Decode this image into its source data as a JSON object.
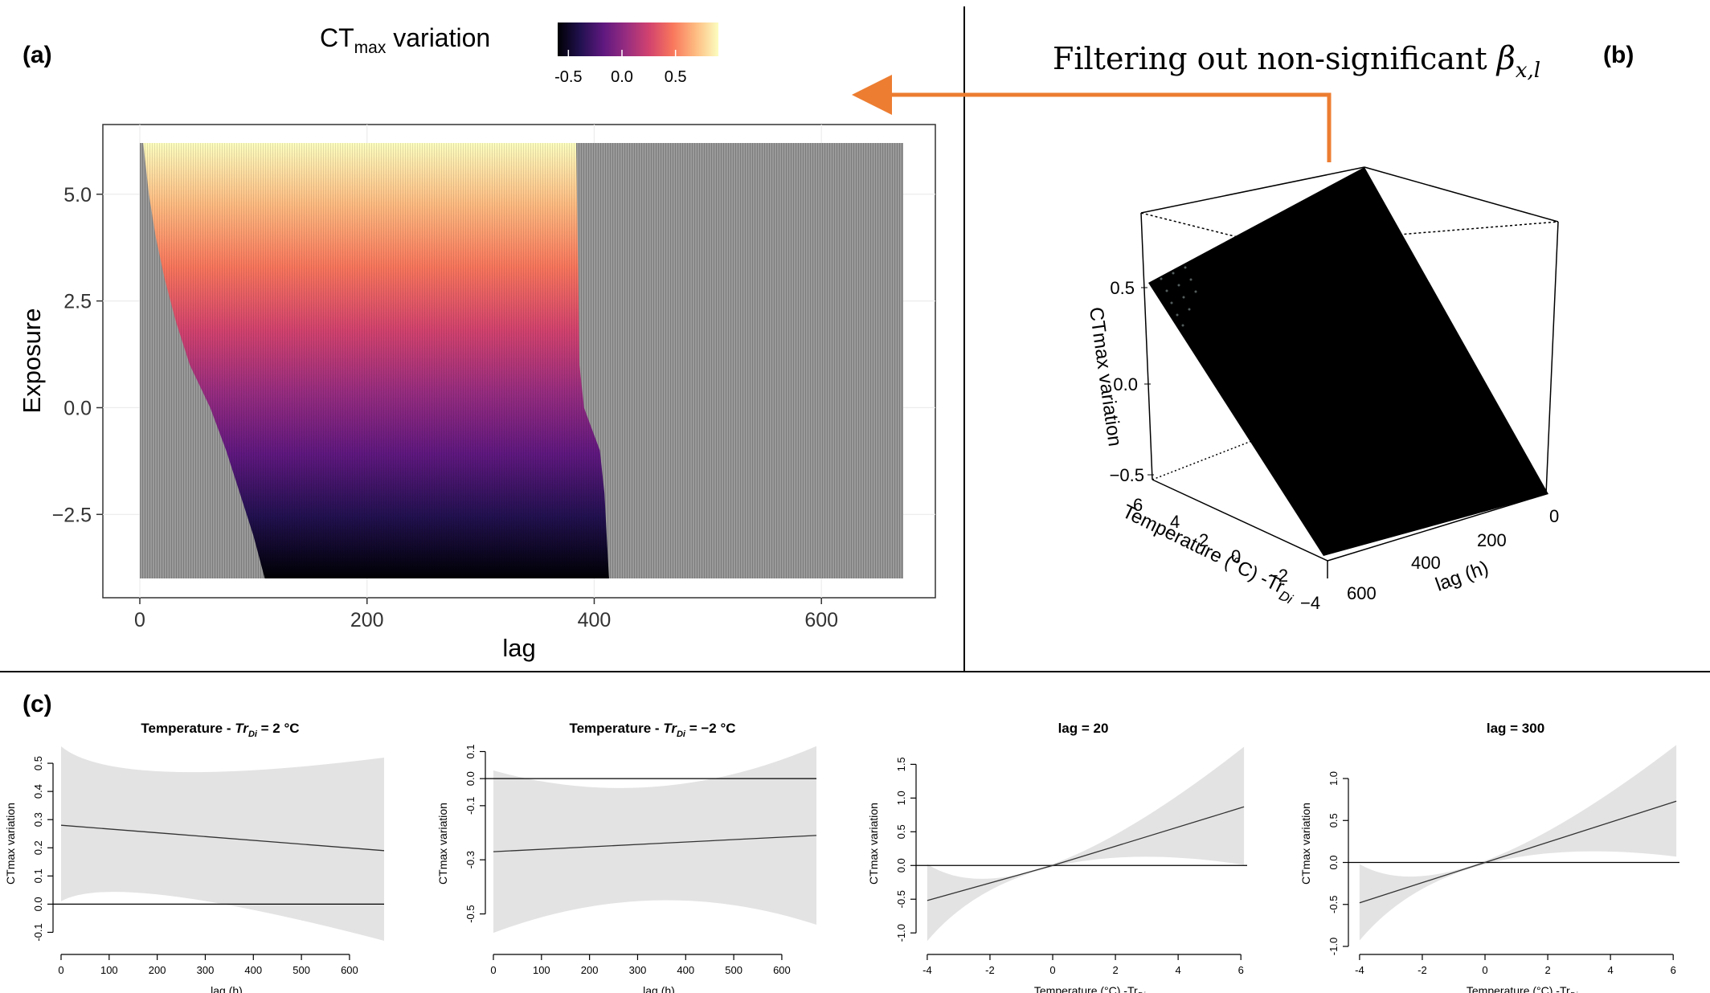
{
  "colors": {
    "na_gray": "#8c8c8c",
    "ci_band": "#e3e3e3",
    "arrow": "#ed7d31",
    "surface": "#000000",
    "magma": [
      "#000004",
      "#221150",
      "#5f187f",
      "#982d80",
      "#d3436e",
      "#f8765c",
      "#febb81",
      "#fcfdbf"
    ]
  },
  "chart_data": [
    {
      "type": "heatmap",
      "panel": "(a)",
      "x": {
        "label": "lag",
        "range": [
          0,
          672
        ],
        "ticks": [
          0,
          200,
          400,
          600
        ],
        "tick_labels": [
          "0",
          "200",
          "400",
          "600"
        ]
      },
      "y": {
        "label": "Exposure",
        "range": [
          -4.0,
          6.2
        ],
        "ticks": [
          -2.5,
          0.0,
          2.5,
          5.0
        ],
        "tick_labels": [
          "−2.5",
          "0.0",
          "2.5",
          "5.0"
        ]
      },
      "legend": {
        "title": "CT",
        "title_sub": "max",
        "title_rest": " variation",
        "range": [
          -0.6,
          0.9
        ],
        "ticks": [
          -0.5,
          0.0,
          0.5
        ],
        "tick_labels": [
          "-0.5",
          "0.0",
          "0.5"
        ],
        "placement": "top"
      },
      "fill_min": -0.62,
      "fill_max": 0.92,
      "significant_lag_min_at_exposure": [
        [
          -4.0,
          110
        ],
        [
          -3.0,
          100
        ],
        [
          -2.0,
          88
        ],
        [
          -1.0,
          76
        ],
        [
          0.0,
          62
        ],
        [
          1.0,
          44
        ],
        [
          2.0,
          32
        ],
        [
          3.0,
          22
        ],
        [
          4.0,
          14
        ],
        [
          5.0,
          8
        ],
        [
          6.2,
          3
        ]
      ],
      "significant_lag_max_at_exposure": [
        [
          -4.0,
          413
        ],
        [
          -3.0,
          411
        ],
        [
          -2.0,
          409
        ],
        [
          -1.0,
          405
        ],
        [
          -0.5,
          398
        ],
        [
          0.0,
          391
        ],
        [
          1.0,
          387
        ],
        [
          3.0,
          386
        ],
        [
          6.2,
          384
        ]
      ],
      "non_significant": "gray"
    },
    {
      "type": "surface3d",
      "panel": "(b)",
      "title_text": "Filtering out non-significant ",
      "title_math": "β",
      "title_math_sub": "x,l",
      "z_label": "CTmax variation",
      "z_ticks": [
        "0.5",
        "0.0",
        "−0.5"
      ],
      "x_label": "Temperature (°C) -Tr",
      "x_label_sub": "Di",
      "x_ticks": [
        "6",
        "4",
        "2",
        "0",
        "−2",
        "−4"
      ],
      "lag_label": "lag (h)",
      "lag_ticks": [
        "0",
        "200",
        "400",
        "600"
      ]
    },
    {
      "type": "line",
      "panel": "(c)",
      "title": "Temperature - ",
      "title_math": "Tr",
      "title_math_sub": "Di",
      "title_rest": " = 2 °C",
      "xlabel": "lag (h)",
      "ylabel": "CTmax variation",
      "xlim": [
        0,
        672
      ],
      "ylim": [
        -0.15,
        0.58
      ],
      "xticks": [
        0,
        100,
        200,
        300,
        400,
        500,
        600
      ],
      "xtick_labels": [
        "0",
        "100",
        "200",
        "300",
        "400",
        "500",
        "600"
      ],
      "yticks": [
        -0.1,
        0.0,
        0.1,
        0.2,
        0.3,
        0.4,
        0.5
      ],
      "ytick_labels": [
        "-0.1",
        "0.0",
        "0.1",
        "0.2",
        "0.3",
        "0.4",
        "0.5"
      ],
      "x": [
        0,
        224,
        672
      ],
      "values": [
        0.28,
        0.25,
        0.19
      ],
      "lower": [
        0.01,
        0.03,
        -0.13
      ],
      "upper": [
        0.56,
        0.47,
        0.52
      ],
      "reference_line": 0
    },
    {
      "type": "line",
      "title": "Temperature - ",
      "title_math": "Tr",
      "title_math_sub": "Di",
      "title_rest": " = −2 °C",
      "xlabel": "lag (h)",
      "ylabel": "CTmax variation",
      "xlim": [
        0,
        672
      ],
      "ylim": [
        -0.62,
        0.14
      ],
      "xticks": [
        0,
        100,
        200,
        300,
        400,
        500,
        600
      ],
      "xtick_labels": [
        "0",
        "100",
        "200",
        "300",
        "400",
        "500",
        "600"
      ],
      "yticks": [
        -0.5,
        -0.3,
        -0.1,
        0.0,
        0.1
      ],
      "ytick_labels": [
        "-0.5",
        "-0.3",
        "-0.1",
        "0.0",
        "0.1"
      ],
      "x": [
        0,
        336,
        672
      ],
      "values": [
        -0.27,
        -0.24,
        -0.21
      ],
      "lower": [
        -0.57,
        -0.45,
        -0.54
      ],
      "upper": [
        0.03,
        -0.03,
        0.12
      ],
      "reference_line": 0
    },
    {
      "type": "line",
      "title": "lag = 20",
      "xlabel": "Temperature (°C) -Tr",
      "xlabel_sub": "Di",
      "ylabel": "CTmax variation",
      "xlim": [
        -4.1,
        6.2
      ],
      "ylim": [
        -1.2,
        1.85
      ],
      "xticks": [
        -4,
        -2,
        0,
        2,
        4,
        6
      ],
      "xtick_labels": [
        "-4",
        "-2",
        "0",
        "2",
        "4",
        "6"
      ],
      "yticks": [
        -1.0,
        -0.5,
        0.0,
        0.5,
        1.0,
        1.5
      ],
      "ytick_labels": [
        "-1.0",
        "-0.5",
        "0.0",
        "0.5",
        "1.0",
        "1.5"
      ],
      "x": [
        -4,
        0,
        6.1
      ],
      "values": [
        -0.52,
        0.0,
        0.87
      ],
      "lower": [
        -1.12,
        -0.02,
        0.01
      ],
      "upper": [
        0.02,
        0.02,
        1.76
      ],
      "reference_line": 0
    },
    {
      "type": "line",
      "title": "lag = 300",
      "xlabel": "Temperature (°C) -Tr",
      "xlabel_sub": "Di",
      "ylabel": "CTmax variation",
      "xlim": [
        -4.1,
        6.2
      ],
      "ylim": [
        -1.0,
        1.45
      ],
      "xticks": [
        -4,
        -2,
        0,
        2,
        4,
        6
      ],
      "xtick_labels": [
        "-4",
        "-2",
        "0",
        "2",
        "4",
        "6"
      ],
      "yticks": [
        -1.0,
        -0.5,
        0.0,
        0.5,
        1.0
      ],
      "ytick_labels": [
        "-1.0",
        "-0.5",
        "0.0",
        "0.5",
        "1.0"
      ],
      "x": [
        -4,
        0,
        6.1
      ],
      "values": [
        -0.48,
        0.0,
        0.73
      ],
      "lower": [
        -0.93,
        -0.02,
        0.07
      ],
      "upper": [
        -0.02,
        0.02,
        1.4
      ],
      "reference_line": 0
    }
  ]
}
